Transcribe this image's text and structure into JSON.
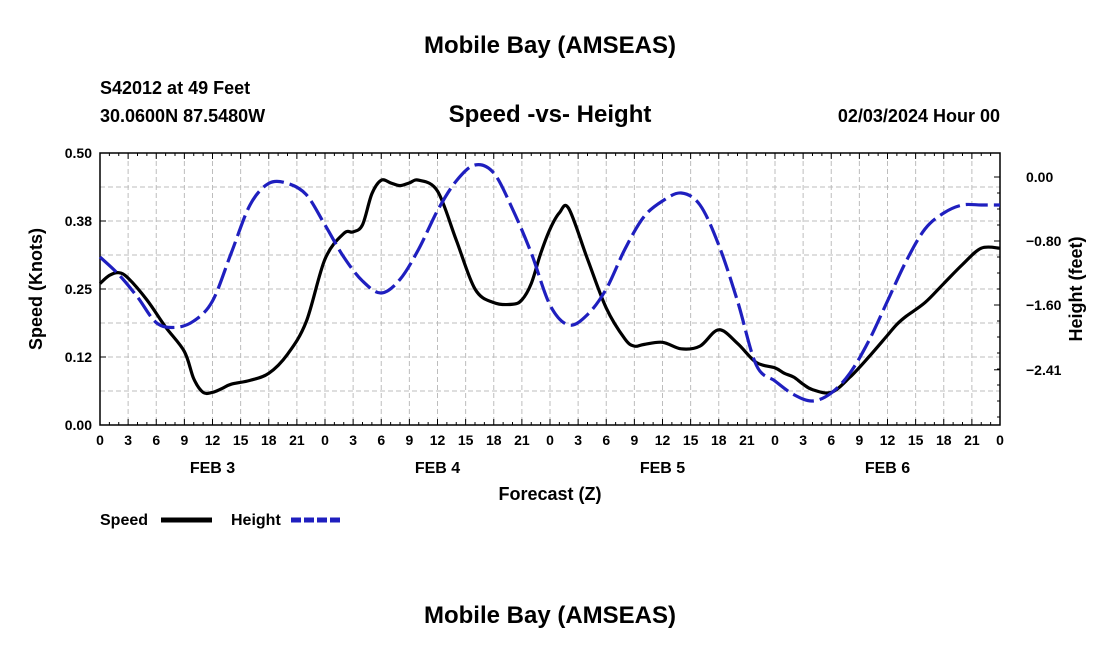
{
  "header": {
    "title": "Mobile Bay (AMSEAS)",
    "station": "S42012 at 49 Feet",
    "coords": "30.0600N  87.5480W",
    "subtitle": "Speed -vs- Height",
    "datetime": "02/03/2024 Hour 00"
  },
  "footer": {
    "title": "Mobile Bay (AMSEAS)"
  },
  "legend": {
    "speed_label": "Speed",
    "height_label": "Height"
  },
  "colors": {
    "speed": "#000000",
    "height": "#1f1fbf",
    "grid": "#bdbdbd"
  },
  "chart_data": {
    "type": "line",
    "title": "Speed -vs- Height",
    "xlabel": "Forecast (Z)",
    "ylabel": "Speed (Knots)",
    "y2label": "Height (feet)",
    "ylim": [
      0,
      0.5
    ],
    "y2lim": [
      -3.1,
      0.3
    ],
    "xlim_hours": [
      0,
      96
    ],
    "yticks": [
      "0.00",
      "0.12",
      "0.25",
      "0.38",
      "0.50"
    ],
    "ytick_values": [
      0,
      0.125,
      0.25,
      0.375,
      0.5
    ],
    "y2ticks": [
      "0.00",
      "−0.80",
      "−1.60",
      "−2.41"
    ],
    "y2tick_values": [
      0.0,
      -0.8,
      -1.6,
      -2.41
    ],
    "xtick_labels": [
      "0",
      "3",
      "6",
      "9",
      "12",
      "15",
      "18",
      "21",
      "0",
      "3",
      "6",
      "9",
      "12",
      "15",
      "18",
      "21",
      "0",
      "3",
      "6",
      "9",
      "12",
      "15",
      "18",
      "21",
      "0",
      "3",
      "6",
      "9",
      "12",
      "15",
      "18",
      "21",
      "0"
    ],
    "date_labels": [
      "FEB 3",
      "FEB 4",
      "FEB 5",
      "FEB 6"
    ],
    "grid": true,
    "legend_position": "bottom-left",
    "series": [
      {
        "name": "Speed",
        "axis": "left",
        "style": "solid",
        "x": [
          0,
          1,
          2,
          3,
          5,
          7,
          9,
          10,
          11,
          12,
          13,
          14,
          16,
          18,
          20,
          22,
          24,
          26,
          27,
          28,
          29,
          30,
          31,
          32,
          33,
          34,
          36,
          38,
          40,
          42,
          44,
          45,
          46,
          47,
          48,
          49,
          50,
          52,
          54,
          56,
          57,
          58,
          60,
          62,
          64,
          66,
          68,
          70,
          72,
          73,
          74,
          75,
          76,
          78,
          80,
          82,
          84,
          85,
          86,
          88,
          90,
          92,
          94,
          96
        ],
        "y": [
          0.26,
          0.275,
          0.28,
          0.27,
          0.23,
          0.18,
          0.135,
          0.085,
          0.06,
          0.06,
          0.067,
          0.075,
          0.082,
          0.095,
          0.13,
          0.19,
          0.305,
          0.352,
          0.355,
          0.368,
          0.425,
          0.45,
          0.445,
          0.44,
          0.445,
          0.45,
          0.43,
          0.34,
          0.25,
          0.225,
          0.222,
          0.23,
          0.26,
          0.315,
          0.36,
          0.39,
          0.398,
          0.305,
          0.215,
          0.158,
          0.145,
          0.148,
          0.152,
          0.14,
          0.145,
          0.175,
          0.15,
          0.115,
          0.105,
          0.095,
          0.088,
          0.075,
          0.065,
          0.06,
          0.088,
          0.125,
          0.165,
          0.185,
          0.2,
          0.225,
          0.26,
          0.295,
          0.325,
          0.325
        ]
      },
      {
        "name": "Height",
        "axis": "right",
        "style": "dashed",
        "x": [
          0,
          2,
          4,
          6,
          8,
          10,
          12,
          14,
          16,
          18,
          20,
          22,
          24,
          26,
          28,
          30,
          32,
          34,
          36,
          38,
          40,
          42,
          44,
          46,
          48,
          50,
          52,
          54,
          56,
          58,
          60,
          62,
          64,
          66,
          68,
          70,
          72,
          74,
          76,
          78,
          80,
          82,
          84,
          86,
          88,
          90,
          92,
          94,
          96
        ],
        "y": [
          -1.0,
          -1.22,
          -1.5,
          -1.82,
          -1.88,
          -1.8,
          -1.55,
          -0.95,
          -0.35,
          -0.08,
          -0.08,
          -0.22,
          -0.6,
          -1.0,
          -1.3,
          -1.45,
          -1.28,
          -0.9,
          -0.42,
          -0.05,
          0.15,
          0.05,
          -0.4,
          -0.95,
          -1.6,
          -1.85,
          -1.72,
          -1.4,
          -0.9,
          -0.5,
          -0.3,
          -0.2,
          -0.35,
          -0.85,
          -1.55,
          -2.35,
          -2.55,
          -2.72,
          -2.8,
          -2.7,
          -2.45,
          -2.05,
          -1.55,
          -1.05,
          -0.65,
          -0.45,
          -0.35,
          -0.35,
          -0.35
        ]
      }
    ]
  }
}
